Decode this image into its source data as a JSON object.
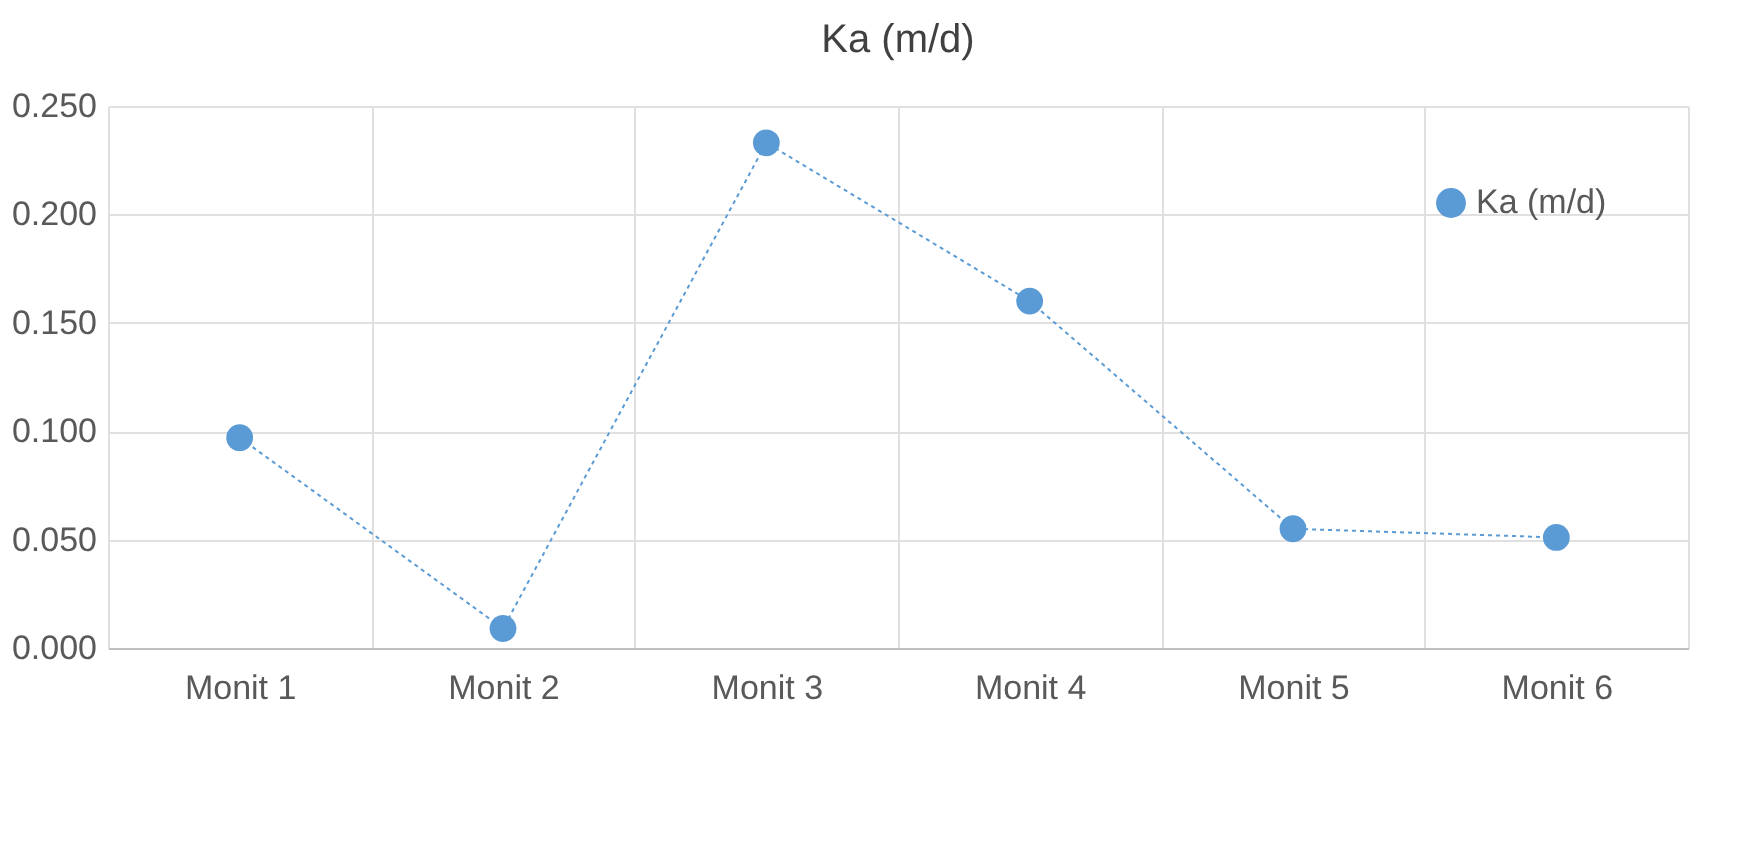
{
  "chart_data": {
    "type": "line",
    "title": "Ka (m/d)",
    "categories": [
      "Monit 1",
      "Monit 2",
      "Monit 3",
      "Monit 4",
      "Monit 5",
      "Monit 6"
    ],
    "series": [
      {
        "name": "Ka (m/d)",
        "color": "#5b9bd5",
        "values": [
          0.097,
          0.009,
          0.233,
          0.16,
          0.055,
          0.051
        ]
      }
    ],
    "ylim": [
      0,
      0.25
    ],
    "yticks": [
      {
        "value": 0,
        "label": "0.000"
      },
      {
        "value": 0.05,
        "label": "0.050"
      },
      {
        "value": 0.1,
        "label": "0.100"
      },
      {
        "value": 0.15,
        "label": "0.150"
      },
      {
        "value": 0.2,
        "label": "0.200"
      },
      {
        "value": 0.25,
        "label": "0.250"
      }
    ],
    "grid": true,
    "legend": "top right",
    "marker": "circle",
    "line_style": "dotted"
  }
}
